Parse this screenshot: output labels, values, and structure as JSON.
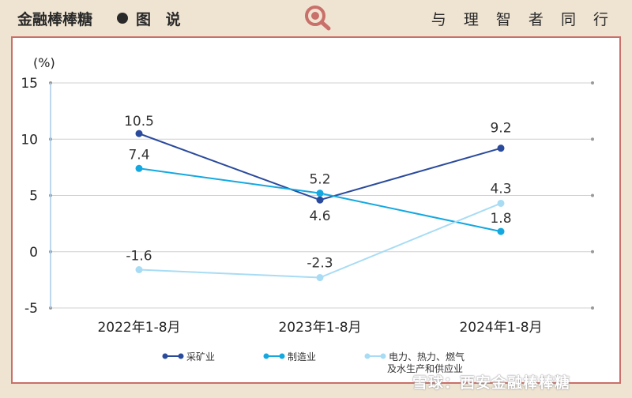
{
  "header": {
    "brand": "金融棒棒糖",
    "subtitle": "图 说",
    "slogan": "与 理 智 者 同 行"
  },
  "watermark": "雪球：西安金融棒棒糖",
  "colors": {
    "mining": "#2a4a9c",
    "manufacturing": "#14a8e0",
    "utilities": "#a8dcf4",
    "card_border": "#c9706a",
    "background": "#efe4d2"
  },
  "chart_data": {
    "type": "line",
    "unit_label": "(%)",
    "categories": [
      "2022年1-8月",
      "2023年1-8月",
      "2024年1-8月"
    ],
    "ylim": [
      -5,
      15
    ],
    "yticks": [
      -5,
      0,
      5,
      10,
      15
    ],
    "grid": true,
    "legend_position": "bottom",
    "series": [
      {
        "name": "采矿业",
        "values": [
          10.5,
          4.6,
          9.2
        ],
        "labels": [
          "10.5",
          "4.6",
          "9.2"
        ],
        "color": "#2a4a9c"
      },
      {
        "name": "制造业",
        "values": [
          7.4,
          5.2,
          1.8
        ],
        "labels": [
          "7.4",
          "5.2",
          "1.8"
        ],
        "color": "#14a8e0"
      },
      {
        "name": "电力、热力、燃气及水生产和供应业",
        "legend_lines": [
          "电力、热力、燃气",
          "及水生产和供应业"
        ],
        "values": [
          -1.6,
          -2.3,
          4.3
        ],
        "labels": [
          "-1.6",
          "-2.3",
          "4.3"
        ],
        "color": "#a8dcf4"
      }
    ]
  }
}
